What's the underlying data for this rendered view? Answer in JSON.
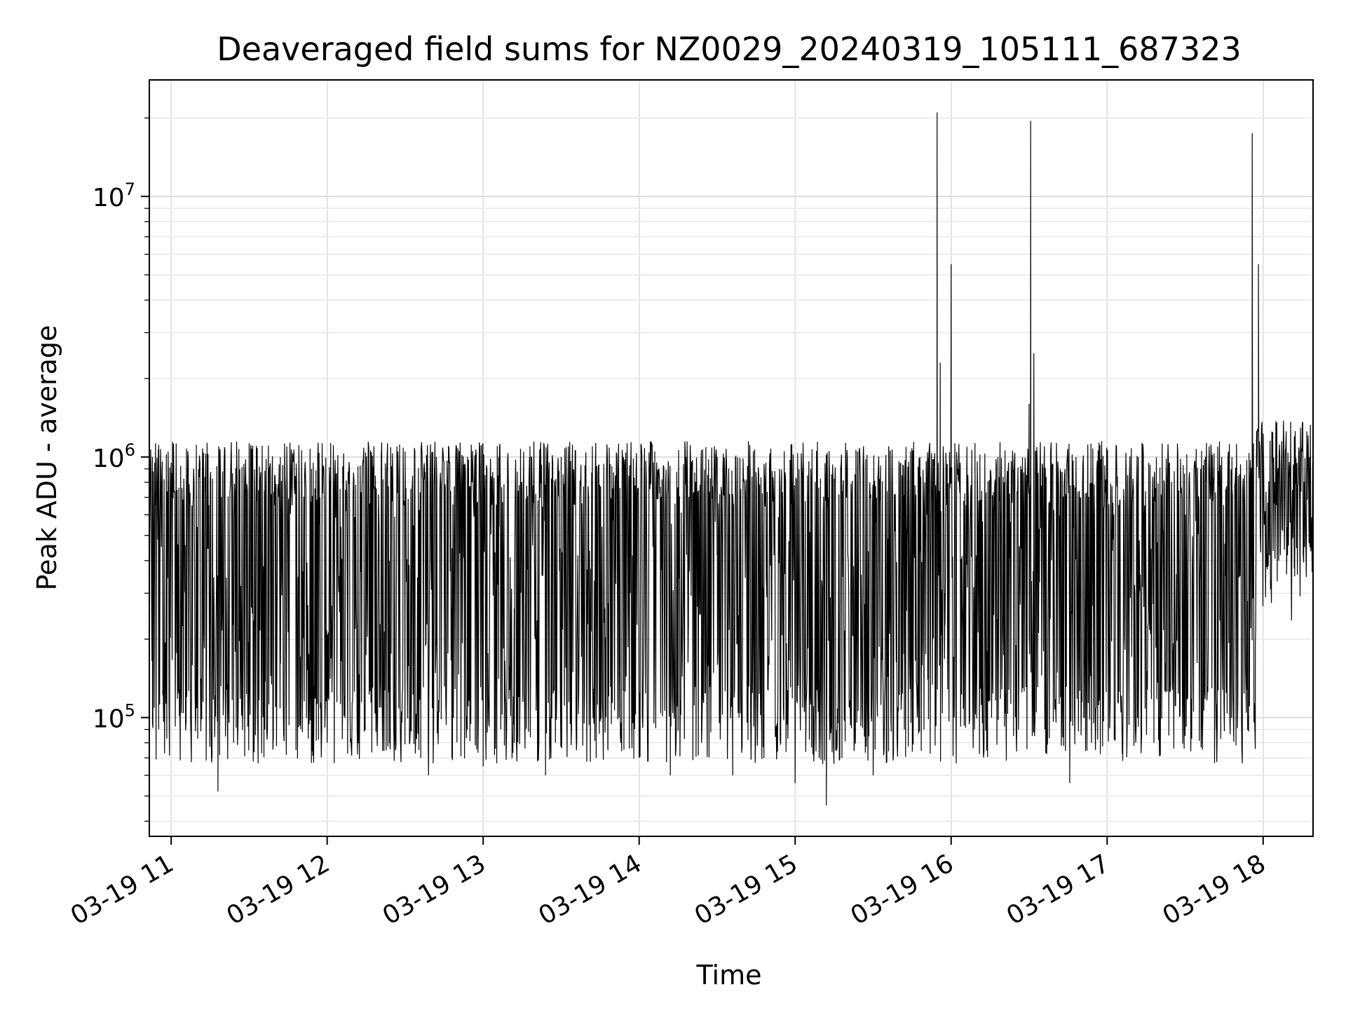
{
  "chart_data": {
    "type": "line",
    "title": "Deaveraged field sums for NZ0029_20240319_105111_687323",
    "xlabel": "Time",
    "ylabel": "Peak ADU - average",
    "yscale": "log",
    "ylim": [
      35000,
      28000000
    ],
    "xlim_hours": [
      10.86,
      18.32
    ],
    "grid": "on",
    "legend": "none",
    "line_color": "#000000",
    "x_ticks": [
      "03-19 11",
      "03-19 12",
      "03-19 13",
      "03-19 14",
      "03-19 15",
      "03-19 16",
      "03-19 17",
      "03-19 18"
    ],
    "x_tick_hours": [
      11,
      12,
      13,
      14,
      15,
      16,
      17,
      18
    ],
    "y_ticks": [
      {
        "value": 100000,
        "base": "10",
        "exp": "5"
      },
      {
        "value": 1000000,
        "base": "10",
        "exp": "6"
      },
      {
        "value": 10000000,
        "base": "10",
        "exp": "7"
      }
    ],
    "series": [
      {
        "description_note_omitted": true,
        "x_hours": [
          10.88,
          10.92,
          11.0,
          11.1,
          11.2,
          11.3,
          11.33,
          11.4,
          11.5,
          11.6,
          11.7,
          11.8,
          11.9,
          12.0,
          12.1,
          12.2,
          12.3,
          12.4,
          12.5,
          12.6,
          12.65,
          12.7,
          12.8,
          12.9,
          13.0,
          13.1,
          13.2,
          13.3,
          13.4,
          13.5,
          13.6,
          13.7,
          13.8,
          13.9,
          14.0,
          14.1,
          14.2,
          14.3,
          14.4,
          14.5,
          14.6,
          14.7,
          14.8,
          14.9,
          15.0,
          15.1,
          15.2,
          15.22,
          15.3,
          15.4,
          15.5,
          15.6,
          15.7,
          15.8,
          15.85,
          15.91,
          15.93,
          15.96,
          16.0,
          16.02,
          16.1,
          16.2,
          16.3,
          16.4,
          16.5,
          16.51,
          16.53,
          16.6,
          16.7,
          16.76,
          16.8,
          16.9,
          17.0,
          17.1,
          17.2,
          17.3,
          17.4,
          17.5,
          17.6,
          17.7,
          17.8,
          17.9,
          17.93,
          17.95,
          17.97,
          18.0,
          18.1,
          18.2,
          18.3
        ],
        "y_approx": [
          1000000,
          90000,
          950000,
          120000,
          900000,
          52000,
          880000,
          80000,
          950000,
          90000,
          1000000,
          75000,
          900000,
          80000,
          920000,
          85000,
          1100000,
          80000,
          1050000,
          70000,
          60000,
          1000000,
          70000,
          1000000,
          65000,
          1000000,
          80000,
          1100000,
          60000,
          1000000,
          80000,
          1100000,
          75000,
          1000000,
          70000,
          1050000,
          60000,
          1000000,
          80000,
          1000000,
          60000,
          950000,
          70000,
          900000,
          56000,
          900000,
          46000,
          850000,
          70000,
          1050000,
          60000,
          1100000,
          90000,
          1000000,
          140000,
          21000000,
          2300000,
          300000,
          5500000,
          100000,
          900000,
          95000,
          1000000,
          85000,
          1600000,
          19500000,
          2500000,
          90000,
          900000,
          56000,
          1000000,
          80000,
          900000,
          75000,
          1000000,
          80000,
          950000,
          85000,
          900000,
          90000,
          1000000,
          280000,
          17500000,
          190000,
          5500000,
          600000,
          400000,
          1200000,
          450000
        ]
      }
    ]
  }
}
